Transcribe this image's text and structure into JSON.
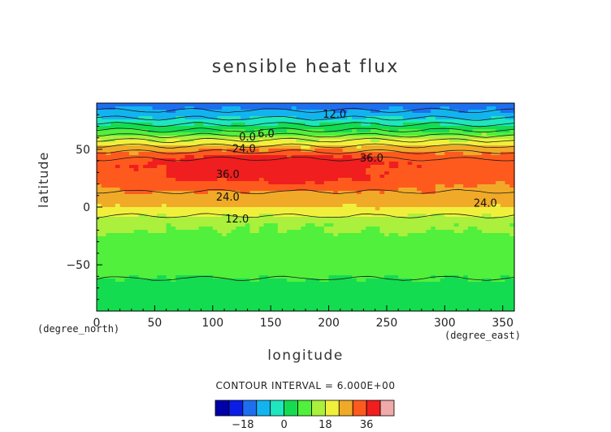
{
  "chart_data": {
    "type": "heatmap",
    "title": "sensible heat flux",
    "xlabel": "longitude",
    "ylabel": "latitude",
    "x_unit": "(degree_east)",
    "y_unit": "(degree_north)",
    "xlim": [
      0,
      360
    ],
    "ylim": [
      -90,
      90
    ],
    "x_ticks": [
      0,
      50,
      100,
      150,
      200,
      250,
      300,
      350
    ],
    "y_ticks": [
      -50,
      0,
      50
    ],
    "y_tick_labels": [
      "−50",
      "0",
      "50"
    ],
    "contour_interval_text": "CONTOUR INTERVAL = 6.000E+00",
    "contour_interval": 6.0,
    "contour_labels": [
      {
        "text": "12.0",
        "lon": 205,
        "lat": 81
      },
      {
        "text": "0.0",
        "lon": 130,
        "lat": 61
      },
      {
        "text": "6.0",
        "lon": 146,
        "lat": 64
      },
      {
        "text": "24.0",
        "lon": 127,
        "lat": 51
      },
      {
        "text": "36.0",
        "lon": 237,
        "lat": 43
      },
      {
        "text": "36.0",
        "lon": 113,
        "lat": 29
      },
      {
        "text": "24.0",
        "lon": 113,
        "lat": 9
      },
      {
        "text": "24.0",
        "lon": 335,
        "lat": 4
      },
      {
        "text": "12.0",
        "lon": 121,
        "lat": -10
      }
    ],
    "latitude_profile_lat": [
      -90,
      -75,
      -65,
      -55,
      -40,
      -25,
      -20,
      -15,
      -10,
      -5,
      0,
      5,
      10,
      15,
      20,
      25,
      30,
      35,
      40,
      45,
      50,
      55,
      60,
      65,
      70,
      75,
      80,
      85,
      90
    ],
    "latitude_profile_value": [
      4,
      4,
      5,
      8,
      9,
      11,
      12,
      13,
      16,
      20,
      24,
      26,
      28,
      31,
      33,
      35,
      36,
      37,
      37,
      34,
      27,
      22,
      15,
      8,
      2,
      -4,
      -9,
      -13,
      -15
    ],
    "colorbar": {
      "levels": [
        -24,
        -18,
        -12,
        -6,
        0,
        6,
        12,
        18,
        24,
        30,
        36,
        42
      ],
      "colors": [
        "#0000a8",
        "#0a1ee6",
        "#1e6ef0",
        "#12b4f0",
        "#1ee6be",
        "#14dc50",
        "#50f03c",
        "#aaf03c",
        "#f0f03c",
        "#f0aa28",
        "#ff5a1e",
        "#f01e1e",
        "#f0aaaa"
      ],
      "tick_values": [
        -18,
        0,
        18,
        36
      ],
      "tick_labels": [
        "−18",
        "0",
        "18",
        "36"
      ]
    }
  }
}
